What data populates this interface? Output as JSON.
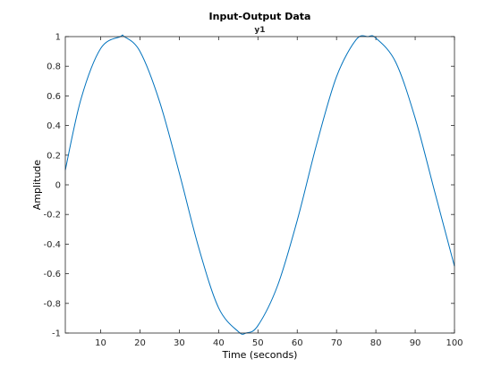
{
  "chart_data": {
    "type": "line",
    "title": "Input-Output Data",
    "subtitle": "y1",
    "xlabel": "Time (seconds)",
    "ylabel": "Amplitude",
    "xlim": [
      1,
      100
    ],
    "ylim": [
      -1,
      1
    ],
    "xticks": [
      10,
      20,
      30,
      40,
      50,
      60,
      70,
      80,
      90,
      100
    ],
    "yticks": [
      -1,
      -0.8,
      -0.6,
      -0.4,
      -0.2,
      0,
      0.2,
      0.4,
      0.6,
      0.8,
      1
    ],
    "ytick_labels": [
      "-1",
      "-0.8",
      "-0.6",
      "-0.4",
      "-0.2",
      "0",
      "0.2",
      "0.4",
      "0.6",
      "0.8",
      "1"
    ],
    "grid": false,
    "series": [
      {
        "color": "#0072bd",
        "x": [
          1,
          5,
          10,
          15,
          16,
          20,
          25,
          30,
          35,
          40,
          45,
          47,
          50,
          55,
          60,
          65,
          70,
          75,
          78,
          80,
          85,
          90,
          95,
          100
        ],
        "y": [
          0.1,
          0.58,
          0.92,
          1.0,
          1.0,
          0.9,
          0.56,
          0.08,
          -0.43,
          -0.83,
          -0.99,
          -1.0,
          -0.95,
          -0.68,
          -0.24,
          0.28,
          0.73,
          0.98,
          1.0,
          0.99,
          0.83,
          0.45,
          -0.05,
          -0.55
        ]
      }
    ]
  }
}
